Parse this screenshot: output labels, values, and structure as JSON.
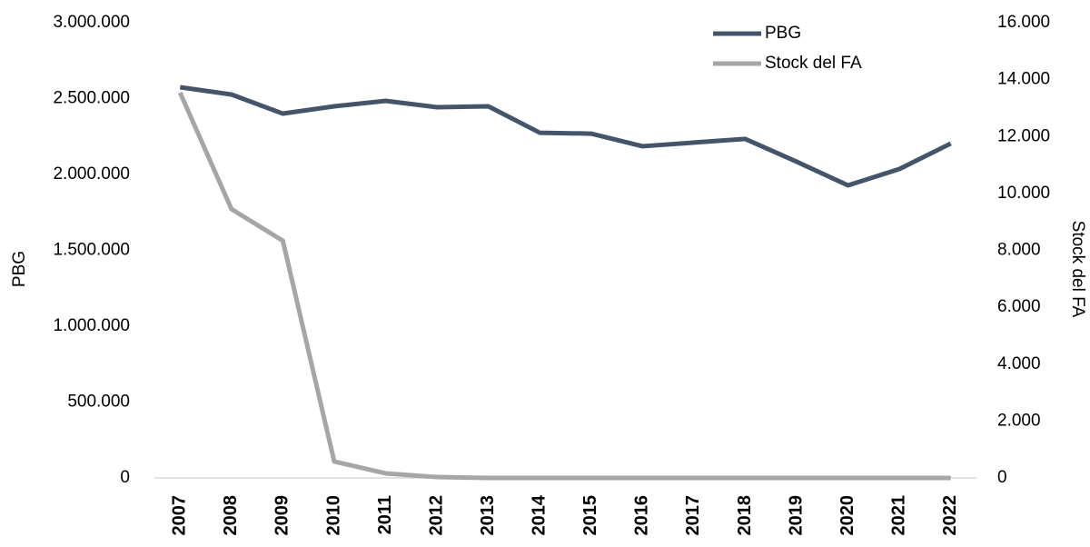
{
  "chart_data": {
    "type": "line",
    "categories": [
      "2007",
      "2008",
      "2009",
      "2010",
      "2011",
      "2012",
      "2013",
      "2014",
      "2015",
      "2016",
      "2017",
      "2018",
      "2019",
      "2020",
      "2021",
      "2022"
    ],
    "series": [
      {
        "name": "PBG",
        "color": "#44546a",
        "values": [
          2575000,
          2527000,
          2401000,
          2449000,
          2485000,
          2443000,
          2449000,
          2275000,
          2269000,
          2186000,
          2210000,
          2234000,
          2084000,
          1928000,
          2036000,
          2204000
        ]
      },
      {
        "name": "Stock del FA",
        "color": "#a6a6a6",
        "axis": "y2",
        "values": [
          13540,
          9450,
          8335,
          575,
          160,
          30,
          0,
          0,
          0,
          0,
          0,
          0,
          0,
          0,
          0,
          0
        ]
      }
    ],
    "ylabel": "PBG",
    "y2label": "Stock del FA",
    "ylim": [
      0,
      3000000
    ],
    "yticks": [
      0,
      {
        "value": 500000,
        "label": "500.000"
      },
      {
        "value": 1000000,
        "label": "1.000.000"
      },
      {
        "value": 1500000,
        "label": "1.500.000"
      },
      {
        "value": 2000000,
        "label": "2.000.000"
      },
      {
        "value": 2500000,
        "label": "2.500.000"
      },
      {
        "value": 3000000,
        "label": "3.000.000"
      }
    ],
    "y2lim": [
      0,
      16000
    ],
    "y2ticks": [
      0,
      {
        "value": 2000,
        "label": "2.000"
      },
      {
        "value": 4000,
        "label": "4.000"
      },
      {
        "value": 6000,
        "label": "6.000"
      },
      {
        "value": 8000,
        "label": "8.000"
      },
      {
        "value": 10000,
        "label": "10.000"
      },
      {
        "value": 12000,
        "label": "12.000"
      },
      {
        "value": 14000,
        "label": "14.000"
      },
      {
        "value": 16000,
        "label": "16.000"
      }
    ],
    "grid": false,
    "legend": "top"
  }
}
